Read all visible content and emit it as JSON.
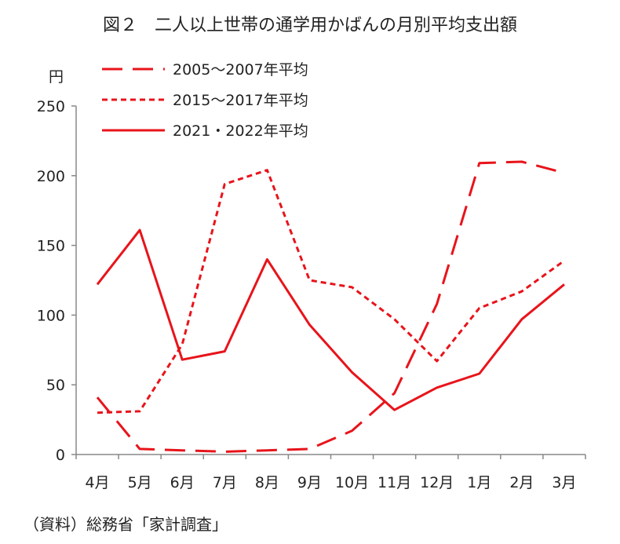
{
  "title": "図２　二人以上世帯の通学用かばんの月別平均支出額",
  "source": "（資料）総務省「家計調査」",
  "chart_data": {
    "type": "line",
    "title": "図２　二人以上世帯の通学用かばんの月別平均支出額",
    "ylabel": "円",
    "xlabel": "",
    "ylim": [
      0,
      250
    ],
    "yticks": [
      "0",
      "50",
      "100",
      "150",
      "200",
      "250"
    ],
    "categories": [
      "4月",
      "5月",
      "6月",
      "7月",
      "8月",
      "9月",
      "10月",
      "11月",
      "12月",
      "1月",
      "2月",
      "3月"
    ],
    "grid": false,
    "legend_position": "top-left",
    "line_color": "#e8141b",
    "series": [
      {
        "name": "2005～2007年平均",
        "style": "long-dash",
        "values": [
          41,
          4,
          3,
          2,
          3,
          4,
          17,
          44,
          108,
          209,
          210,
          202
        ]
      },
      {
        "name": "2015～2017年平均",
        "style": "short-dash",
        "values": [
          30,
          31,
          79,
          194,
          204,
          125,
          120,
          97,
          67,
          105,
          117,
          139
        ]
      },
      {
        "name": "2021・2022年平均",
        "style": "solid",
        "values": [
          122,
          161,
          68,
          74,
          140,
          93,
          59,
          32,
          48,
          58,
          97,
          122
        ]
      }
    ]
  }
}
